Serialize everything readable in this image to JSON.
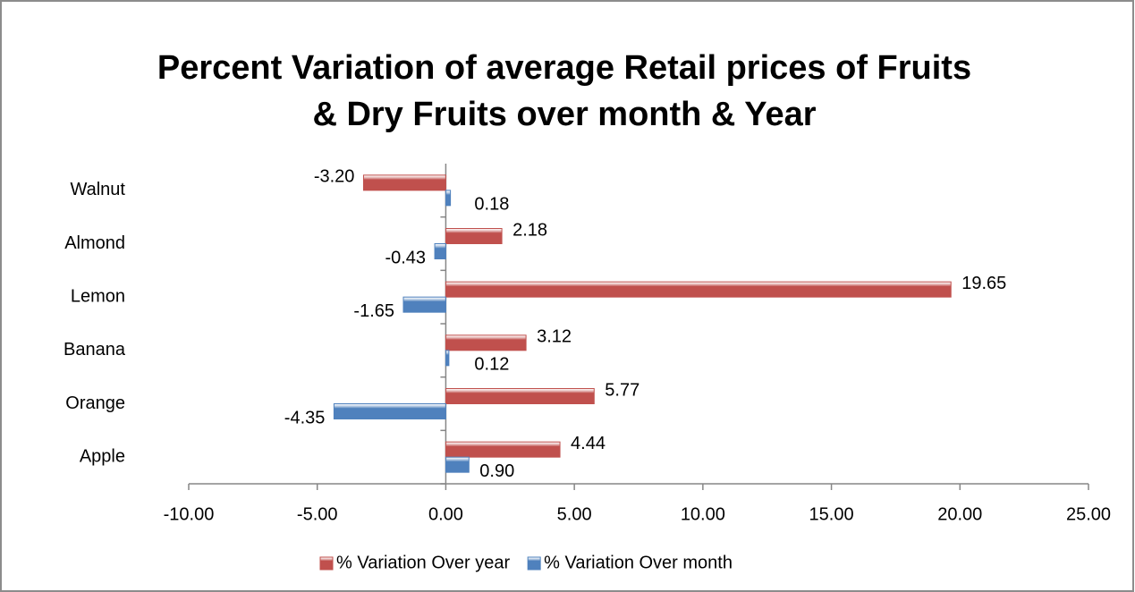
{
  "chart_data": {
    "type": "hbar",
    "title": [
      "Percent Variation of average Retail prices of Fruits",
      "& Dry Fruits over month & Year"
    ],
    "categories": [
      "Apple",
      "Orange",
      "Banana",
      "Lemon",
      "Almond",
      "Walnut"
    ],
    "series": [
      {
        "name": "% Variation Over year",
        "color": "#c0504d",
        "values": [
          4.44,
          5.77,
          3.12,
          19.65,
          2.18,
          -3.2
        ],
        "value_labels": [
          "4.44",
          "5.77",
          "3.12",
          "19.65",
          "2.18",
          "-3.20"
        ]
      },
      {
        "name": "% Variation Over month",
        "color": "#4f81bd",
        "values": [
          0.9,
          -4.35,
          0.12,
          -1.65,
          -0.43,
          0.18
        ],
        "value_labels": [
          "0.90",
          "-4.35",
          "0.12",
          "-1.65",
          "-0.43",
          "0.18"
        ]
      }
    ],
    "xlim": [
      -10,
      25
    ],
    "xticks": [
      {
        "value": -10,
        "label": "-10.00"
      },
      {
        "value": -5,
        "label": "-5.00"
      },
      {
        "value": 0,
        "label": "0.00"
      },
      {
        "value": 5,
        "label": "5.00"
      },
      {
        "value": 10,
        "label": "10.00"
      },
      {
        "value": 15,
        "label": "15.00"
      },
      {
        "value": 20,
        "label": "20.00"
      },
      {
        "value": 25,
        "label": "25.00"
      }
    ],
    "legend": "bottom"
  }
}
